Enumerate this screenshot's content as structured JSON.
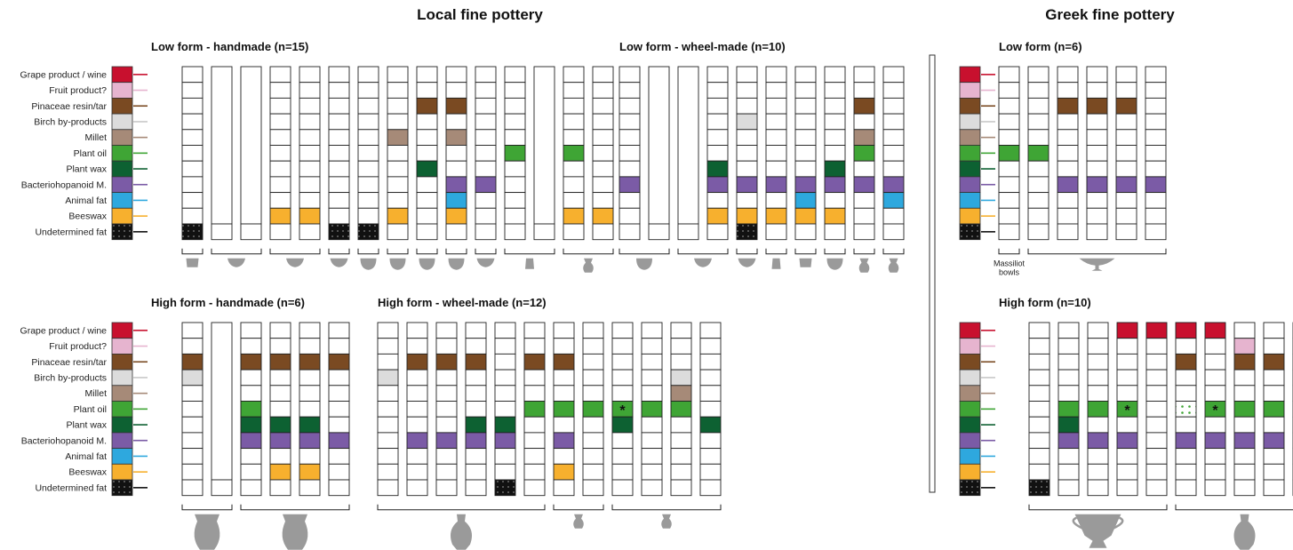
{
  "headings": {
    "local": "Local fine pottery",
    "greek": "Greek fine pottery"
  },
  "categories": [
    "Grape product / wine",
    "Fruit product?",
    "Pinaceae resin/tar",
    "Birch by-products",
    "Millet",
    "Plant oil",
    "Plant wax",
    "Bacteriohopanoid M.",
    "Animal fat",
    "Beeswax",
    "Undetermined fat"
  ],
  "cat_keys": [
    "wine",
    "fruit",
    "resin",
    "birch",
    "millet",
    "oil",
    "wax",
    "bact",
    "animal",
    "bees",
    "undet"
  ],
  "colors": {
    "wine": "#c8102e",
    "fruit": "#e6b4cf",
    "resin": "#7a4a22",
    "birch": "#dcdcdc",
    "millet": "#a68a78",
    "oil": "#3fa535",
    "wax": "#0d6132",
    "bact": "#7b5ba6",
    "animal": "#2ea8de",
    "bees": "#f7b02e",
    "undet": "#111111"
  },
  "panels": [
    {
      "id": "lh",
      "title": "Low form - handmade (n=15)",
      "columns": [
        [
          "undet"
        ],
        [],
        [],
        [
          "bees"
        ],
        [
          "bees"
        ],
        [
          "undet"
        ],
        [
          "undet"
        ],
        [
          "millet",
          "bees"
        ],
        [
          "resin",
          "wax"
        ],
        [
          "resin",
          "millet",
          "bact",
          "animal",
          "bees"
        ],
        [
          "bact"
        ],
        [
          "oil"
        ],
        [],
        [
          "oil",
          "bees"
        ],
        [
          "bees"
        ]
      ],
      "groups": [
        [
          0,
          0
        ],
        [
          1,
          2
        ],
        [
          3,
          4
        ],
        [
          5,
          5
        ],
        [
          6,
          6
        ],
        [
          7,
          7
        ],
        [
          8,
          8
        ],
        [
          9,
          9
        ],
        [
          10,
          10
        ],
        [
          11,
          12
        ],
        [
          13,
          14
        ]
      ]
    },
    {
      "id": "lw",
      "title": "Low form - wheel-made (n=10)",
      "columns": [
        [
          "bact"
        ],
        [],
        [],
        [
          "wax",
          "bact",
          "bees"
        ],
        [
          "birch",
          "bact",
          "bees",
          "undet"
        ],
        [
          "bact",
          "bees"
        ],
        [
          "bact",
          "animal",
          "bees"
        ],
        [
          "wax",
          "bact",
          "bees"
        ],
        [
          "resin",
          "millet",
          "oil",
          "bact"
        ],
        [
          "bact",
          "animal"
        ]
      ],
      "groups": [
        [
          0,
          1
        ],
        [
          2,
          3
        ],
        [
          4,
          4
        ],
        [
          5,
          5
        ],
        [
          6,
          6
        ],
        [
          7,
          7
        ],
        [
          8,
          8
        ],
        [
          9,
          9
        ]
      ]
    },
    {
      "id": "gl",
      "title": "Low form (n=6)",
      "columns": [
        [
          "oil"
        ],
        [
          "oil"
        ],
        [
          "resin",
          "bact"
        ],
        [
          "resin",
          "bact"
        ],
        [
          "resin",
          "bact"
        ],
        [
          "bact"
        ]
      ],
      "groups": [
        [
          0,
          0
        ],
        [
          1,
          5
        ]
      ],
      "notes": {
        "g0": "Massiliot bowls"
      }
    },
    {
      "id": "hh",
      "title": "High form - handmade (n=6)",
      "columns": [
        [
          "resin",
          "birch"
        ],
        [],
        [
          "resin",
          "oil",
          "wax",
          "bact"
        ],
        [
          "resin",
          "wax",
          "bact",
          "bees"
        ],
        [
          "resin",
          "wax",
          "bact",
          "bees"
        ],
        [
          "resin",
          "bact"
        ]
      ],
      "groups": [
        [
          0,
          1
        ],
        [
          2,
          5
        ]
      ]
    },
    {
      "id": "hw",
      "title": "High form - wheel-made (n=12)",
      "columns": [
        [
          "birch"
        ],
        [
          "resin",
          "bact"
        ],
        [
          "resin",
          "bact"
        ],
        [
          "resin",
          "wax",
          "bact"
        ],
        [
          "wax",
          "bact",
          "undet"
        ],
        [
          "resin",
          "oil"
        ],
        [
          "resin",
          "oil",
          "bact",
          "bees"
        ],
        [
          "oil"
        ],
        [
          "oil*",
          "wax"
        ],
        [
          "oil"
        ],
        [
          "birch",
          "millet",
          "oil"
        ],
        [
          "wax"
        ]
      ],
      "groups": [
        [
          0,
          5
        ],
        [
          6,
          7
        ],
        [
          8,
          11
        ]
      ]
    },
    {
      "id": "gh",
      "title": "High form (n=10)",
      "columns": [
        [
          "undet"
        ],
        [
          "oil",
          "wax",
          "bact"
        ],
        [
          "oil",
          "bact"
        ],
        [
          "wine",
          "oil*",
          "bact"
        ],
        [
          "wine"
        ],
        [
          "wine",
          "resin",
          "oilDots",
          "bact"
        ],
        [
          "wine",
          "oil*",
          "bact"
        ],
        [
          "fruit",
          "resin",
          "oil",
          "bact"
        ],
        [
          "resin",
          "oil",
          "bact"
        ],
        [
          "resin",
          "oilDots",
          "bact"
        ]
      ],
      "groups": [
        [
          0,
          4
        ],
        [
          5,
          9
        ]
      ]
    }
  ],
  "asterisk": "*"
}
